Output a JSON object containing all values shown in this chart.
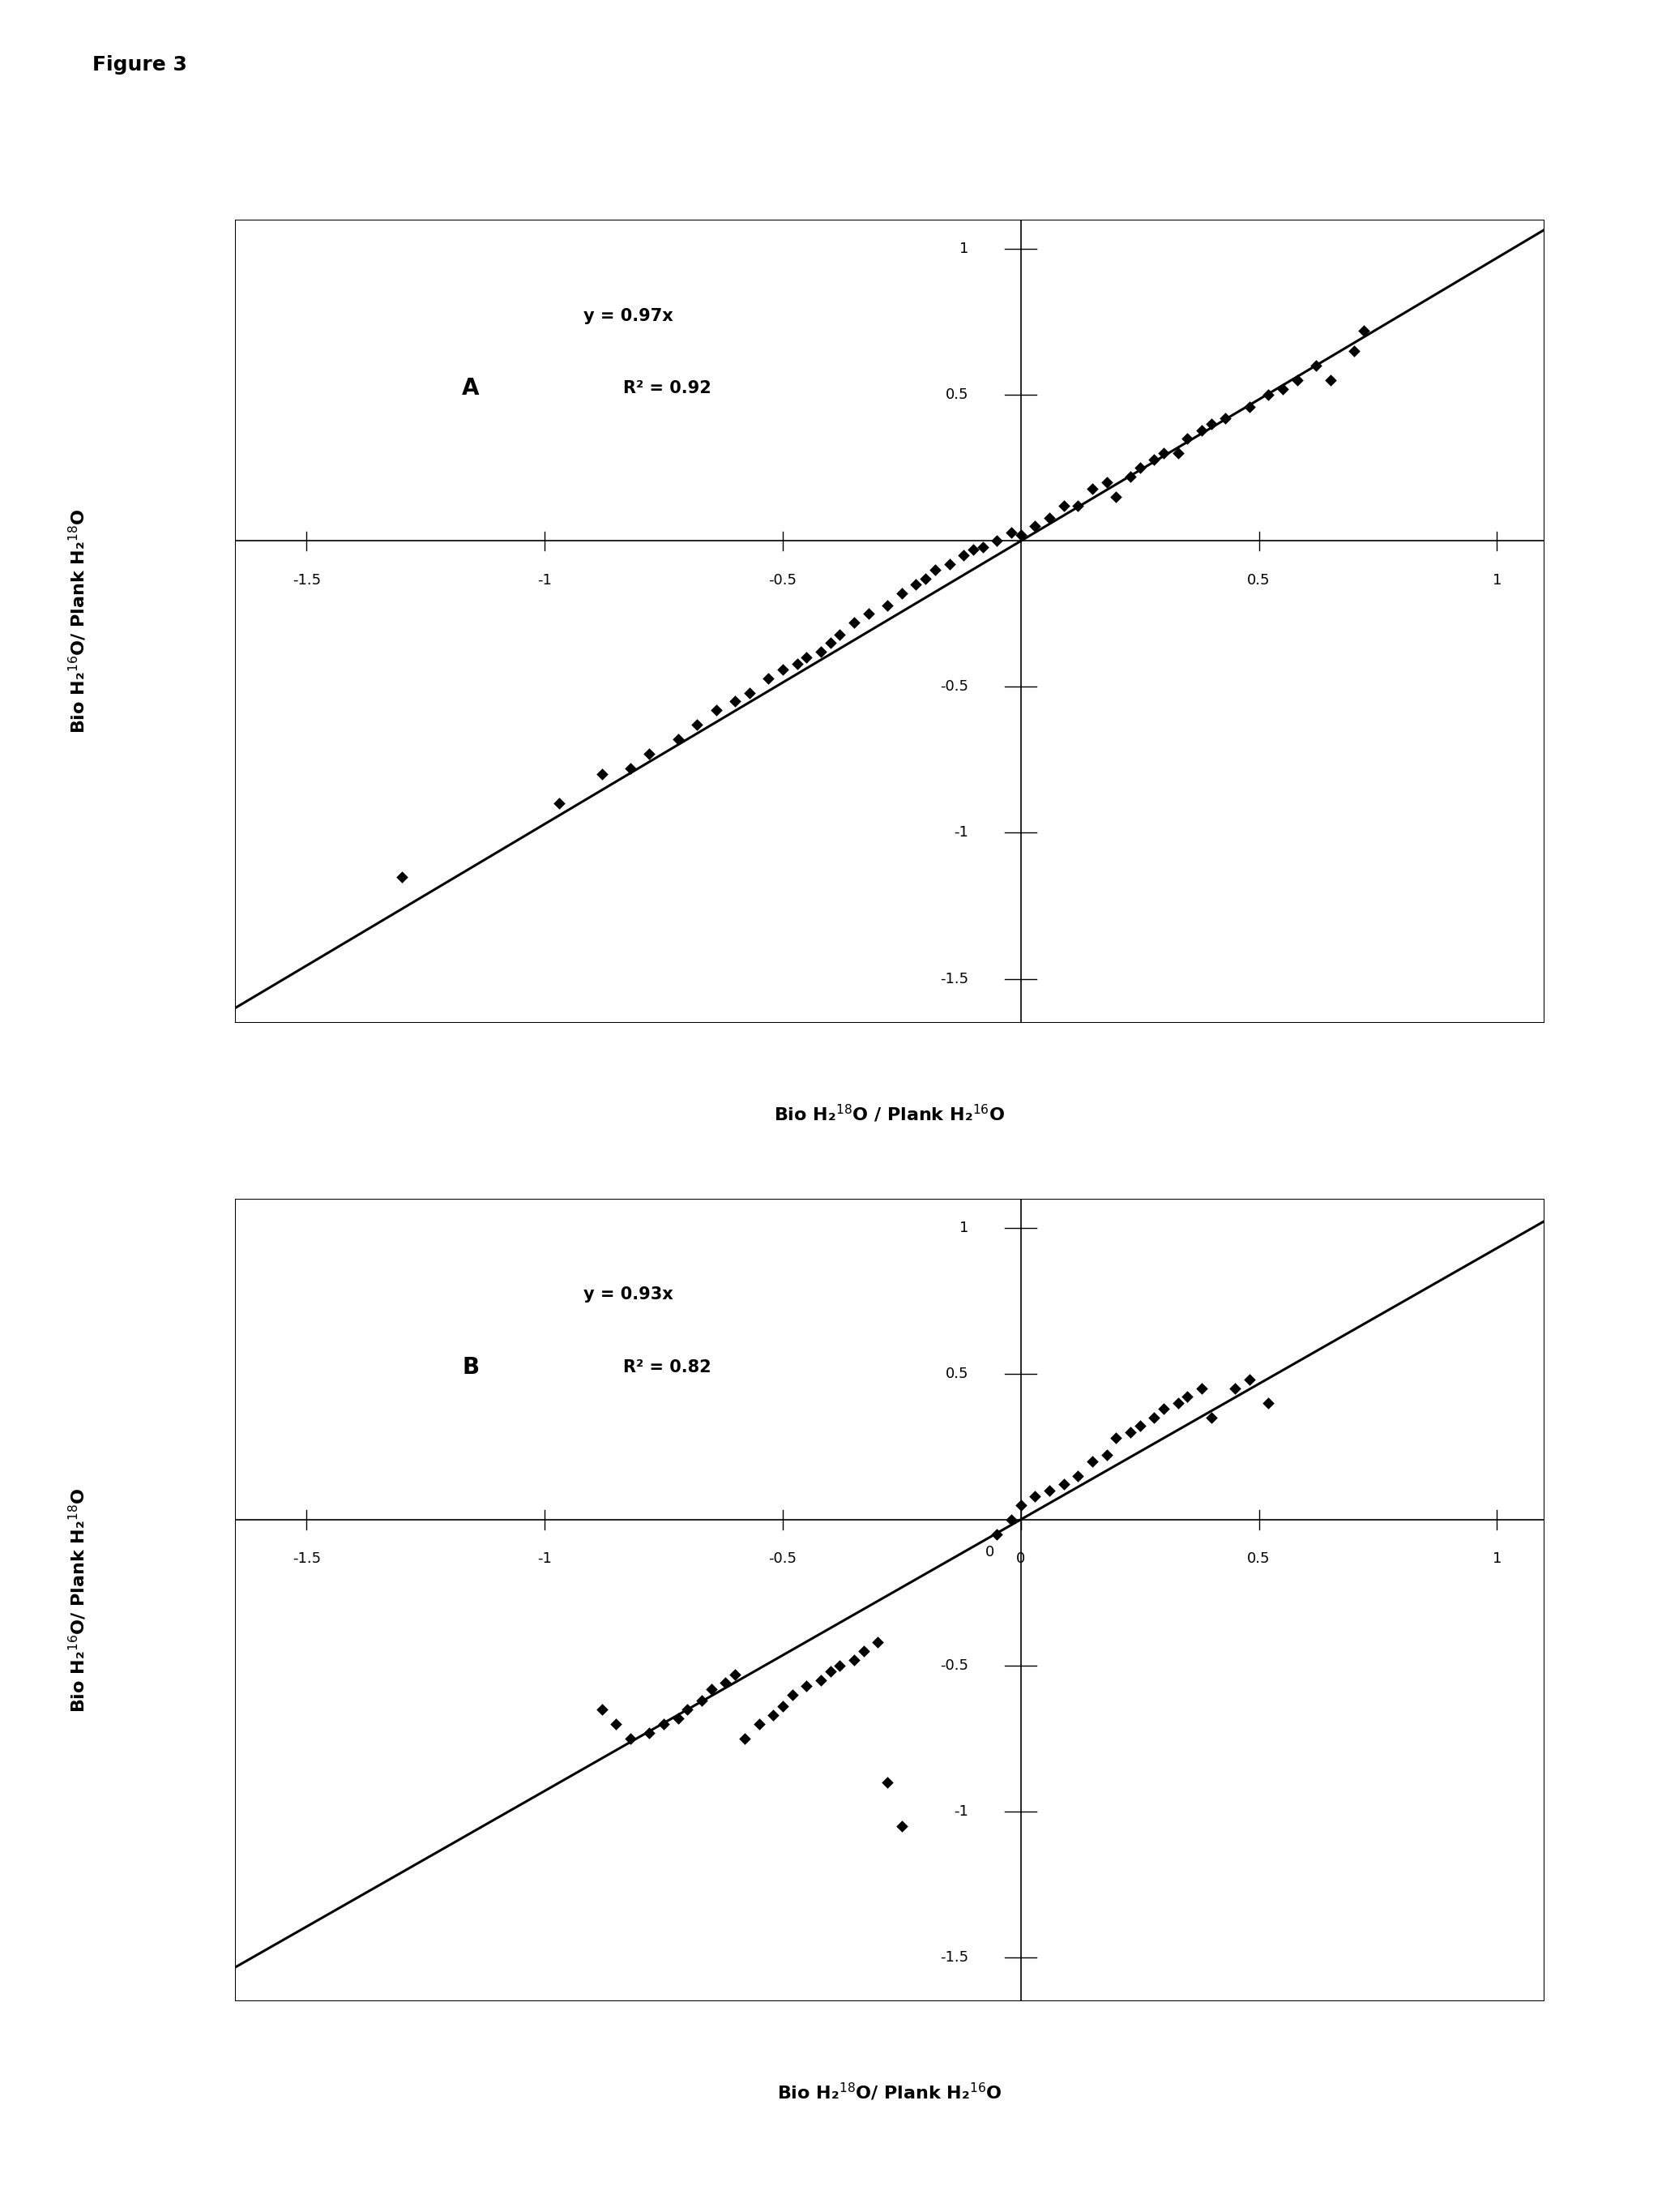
{
  "figure_title": "Figure 3",
  "panel_A": {
    "label": "A",
    "equation": "y = 0.97x",
    "r_squared": "R² = 0.92",
    "slope": 0.97,
    "xlim": [
      -1.65,
      1.1
    ],
    "ylim": [
      -1.65,
      1.1
    ],
    "xticks": [
      -1.5,
      -1.0,
      -0.5,
      0.5,
      1.0
    ],
    "yticks": [
      -1.5,
      -1.0,
      -0.5,
      0.5,
      1.0
    ],
    "xlabel": "Bio H₂$^{18}$O / Plank H₂$^{16}$O",
    "ylabel": "Bio H₂$^{16}$O/ Plank H₂$^{18}$O",
    "scatter_x": [
      -1.3,
      -0.97,
      -0.88,
      -0.82,
      -0.78,
      -0.72,
      -0.68,
      -0.64,
      -0.6,
      -0.57,
      -0.53,
      -0.5,
      -0.47,
      -0.45,
      -0.42,
      -0.4,
      -0.38,
      -0.35,
      -0.32,
      -0.28,
      -0.25,
      -0.22,
      -0.2,
      -0.18,
      -0.15,
      -0.12,
      -0.1,
      -0.08,
      -0.05,
      -0.02,
      0.0,
      0.03,
      0.06,
      0.09,
      0.12,
      0.15,
      0.18,
      0.2,
      0.23,
      0.25,
      0.28,
      0.3,
      0.33,
      0.35,
      0.38,
      0.4,
      0.43,
      0.48,
      0.52,
      0.55,
      0.58,
      0.62,
      0.65,
      0.7,
      0.72
    ],
    "scatter_y": [
      -1.15,
      -0.9,
      -0.8,
      -0.78,
      -0.73,
      -0.68,
      -0.63,
      -0.58,
      -0.55,
      -0.52,
      -0.47,
      -0.44,
      -0.42,
      -0.4,
      -0.38,
      -0.35,
      -0.32,
      -0.28,
      -0.25,
      -0.22,
      -0.18,
      -0.15,
      -0.13,
      -0.1,
      -0.08,
      -0.05,
      -0.03,
      -0.02,
      0.0,
      0.03,
      0.02,
      0.05,
      0.08,
      0.12,
      0.12,
      0.18,
      0.2,
      0.15,
      0.22,
      0.25,
      0.28,
      0.3,
      0.3,
      0.35,
      0.38,
      0.4,
      0.42,
      0.46,
      0.5,
      0.52,
      0.55,
      0.6,
      0.55,
      0.65,
      0.72
    ]
  },
  "panel_B": {
    "label": "B",
    "equation": "y = 0.93x",
    "r_squared": "R² = 0.82",
    "slope": 0.93,
    "xlim": [
      -1.65,
      1.1
    ],
    "ylim": [
      -1.65,
      1.1
    ],
    "xticks": [
      -1.5,
      -1.0,
      -0.5,
      0.0,
      0.5,
      1.0
    ],
    "yticks": [
      -1.5,
      -1.0,
      -0.5,
      0.5,
      1.0
    ],
    "xlabel": "Bio H₂$^{18}$O/ Plank H₂$^{16}$O",
    "ylabel": "Bio H₂$^{16}$O/ Plank H₂$^{18}$O",
    "scatter_x": [
      -0.88,
      -0.85,
      -0.82,
      -0.78,
      -0.75,
      -0.72,
      -0.7,
      -0.67,
      -0.65,
      -0.62,
      -0.6,
      -0.58,
      -0.55,
      -0.52,
      -0.5,
      -0.48,
      -0.45,
      -0.42,
      -0.4,
      -0.38,
      -0.35,
      -0.33,
      -0.3,
      -0.28,
      -0.25,
      -0.05,
      -0.02,
      0.0,
      0.03,
      0.06,
      0.09,
      0.12,
      0.15,
      0.18,
      0.2,
      0.23,
      0.25,
      0.28,
      0.3,
      0.33,
      0.35,
      0.38,
      0.4,
      0.45,
      0.48,
      0.52
    ],
    "scatter_y": [
      -0.65,
      -0.7,
      -0.75,
      -0.73,
      -0.7,
      -0.68,
      -0.65,
      -0.62,
      -0.58,
      -0.56,
      -0.53,
      -0.75,
      -0.7,
      -0.67,
      -0.64,
      -0.6,
      -0.57,
      -0.55,
      -0.52,
      -0.5,
      -0.48,
      -0.45,
      -0.42,
      -0.9,
      -1.05,
      -0.05,
      0.0,
      0.05,
      0.08,
      0.1,
      0.12,
      0.15,
      0.2,
      0.22,
      0.28,
      0.3,
      0.32,
      0.35,
      0.38,
      0.4,
      0.42,
      0.45,
      0.35,
      0.45,
      0.48,
      0.4
    ]
  },
  "marker_color": "#000000",
  "marker_size": 55,
  "line_color": "#000000",
  "line_width": 2.2,
  "font_size_label": 16,
  "font_size_annotation_eq": 15,
  "font_size_annotation_label": 20,
  "font_size_tick": 13,
  "font_size_title": 18,
  "background_color": "#ffffff",
  "page_color": "#ffffff"
}
